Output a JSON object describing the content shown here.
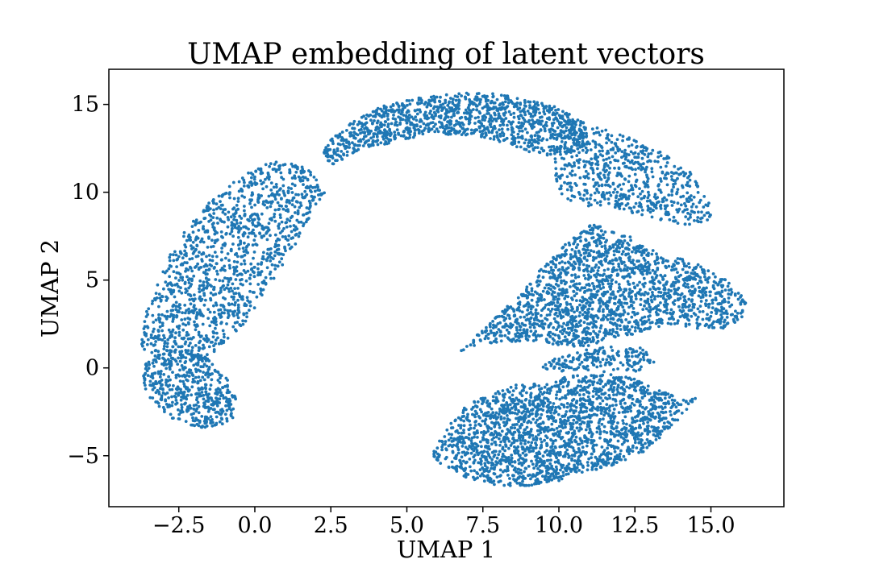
{
  "chart_data": {
    "type": "scatter",
    "title": "UMAP embedding of latent vectors",
    "xlabel": "UMAP 1",
    "ylabel": "UMAP 2",
    "xlim": [
      -4.8,
      17.4
    ],
    "ylim": [
      -7.9,
      17.0
    ],
    "xticks": [
      -2.5,
      0.0,
      2.5,
      5.0,
      7.5,
      10.0,
      12.5,
      15.0
    ],
    "xtick_labels": [
      "−2.5",
      "0.0",
      "2.5",
      "5.0",
      "7.5",
      "10.0",
      "12.5",
      "15.0"
    ],
    "yticks": [
      -5,
      0,
      5,
      10,
      15
    ],
    "ytick_labels": [
      "−5",
      "0",
      "5",
      "10",
      "15"
    ],
    "grid": false,
    "point_color": "#1f77b4",
    "series": [
      {
        "clusters": [
          {
            "x": [
              -3.7,
              -3.6,
              -3.2,
              -2.6,
              -1.8,
              -1.1,
              -0.7,
              -0.6,
              -0.9,
              -1.6,
              -2.4,
              -3.1,
              -3.7
            ],
            "y": [
              -0.2,
              -1.3,
              -2.3,
              -3.0,
              -3.4,
              -3.3,
              -2.8,
              -1.8,
              -0.6,
              0.6,
              1.2,
              0.9,
              0.3
            ],
            "n": 500
          },
          {
            "x": [
              -3.8,
              -3.6,
              -3.2,
              -2.7,
              -2.0,
              -1.2,
              -0.2,
              0.8,
              1.5,
              2.0,
              2.4,
              2.0,
              1.5,
              0.8,
              0.2,
              -0.3,
              -0.9,
              -1.4,
              -2.0,
              -2.6,
              -3.2
            ],
            "y": [
              1.2,
              3.0,
              5.0,
              6.8,
              8.5,
              10.0,
              11.2,
              11.9,
              11.5,
              11.0,
              10.0,
              9.3,
              7.5,
              5.5,
              4.0,
              2.5,
              1.6,
              0.8,
              0.3,
              0.2,
              0.5
            ],
            "n": 1250
          },
          {
            "x": [
              2.2,
              3.0,
              4.0,
              5.0,
              6.0,
              7.0,
              8.0,
              9.0,
              10.0,
              10.8,
              11.0,
              10.2,
              9.2,
              8.2,
              7.2,
              6.2,
              5.2,
              4.2,
              3.3,
              2.5
            ],
            "y": [
              12.5,
              13.8,
              14.8,
              15.3,
              15.5,
              15.7,
              15.6,
              15.3,
              14.8,
              14.0,
              12.8,
              12.0,
              12.2,
              12.8,
              13.2,
              13.3,
              13.1,
              12.7,
              12.2,
              11.5
            ],
            "n": 1150
          },
          {
            "x": [
              10.0,
              11.2,
              12.5,
              13.5,
              14.3,
              14.9,
              15.0,
              14.3,
              13.2,
              12.0,
              11.0,
              10.2,
              9.8
            ],
            "y": [
              14.2,
              13.8,
              13.0,
              12.2,
              11.2,
              10.0,
              8.5,
              8.0,
              8.5,
              9.0,
              9.2,
              9.5,
              11.0
            ],
            "n": 650
          },
          {
            "x": [
              6.7,
              7.6,
              8.5,
              9.5,
              10.3,
              11.1,
              12.3,
              13.4,
              14.5,
              15.5,
              16.2,
              16.0,
              15.4,
              14.6,
              13.7,
              12.6,
              11.4,
              10.4,
              9.2,
              8.2,
              7.3
            ],
            "y": [
              0.9,
              2.5,
              3.8,
              5.8,
              7.2,
              8.2,
              7.5,
              6.5,
              6.0,
              5.0,
              3.8,
              2.8,
              2.2,
              2.2,
              2.5,
              2.0,
              1.3,
              1.2,
              1.5,
              1.5,
              1.3
            ],
            "n": 1800
          },
          {
            "x": [
              9.8,
              10.8,
              11.8,
              12.8,
              13.2,
              12.6,
              11.6,
              10.6,
              9.9,
              9.4
            ],
            "y": [
              0.5,
              1.0,
              1.3,
              1.2,
              0.3,
              -0.2,
              0.0,
              -0.2,
              -0.3,
              0.0
            ],
            "n": 180
          },
          {
            "x": [
              5.8,
              6.2,
              7.0,
              8.0,
              9.0,
              10.0,
              10.7,
              11.7,
              12.8,
              13.8,
              14.6,
              14.2,
              13.2,
              12.4,
              11.8,
              11.0,
              10.2,
              9.5,
              8.4,
              7.5,
              6.7,
              6.2
            ],
            "y": [
              -4.9,
              -5.6,
              -6.3,
              -6.7,
              -6.7,
              -6.5,
              -6.0,
              -5.6,
              -4.8,
              -3.2,
              -1.6,
              -1.9,
              -1.2,
              -0.5,
              -0.1,
              -0.3,
              -0.5,
              -0.8,
              -1.0,
              -1.6,
              -2.5,
              -3.8
            ],
            "n": 2000
          }
        ]
      }
    ]
  }
}
